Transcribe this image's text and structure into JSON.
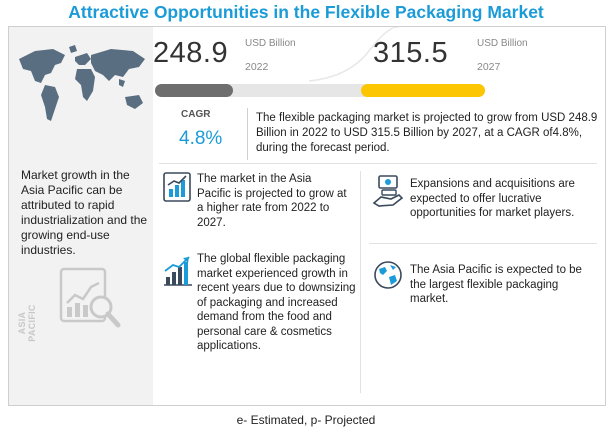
{
  "title": "Attractive Opportunities in the Flexible Packaging Market",
  "left": {
    "text": "Market growth in the Asia Pacific can be attributed to rapid industrialization and the growing end-use industries.",
    "vertical_label": "ASIA PACIFIC"
  },
  "stats": {
    "start_value": "248.9",
    "start_unit": "USD Billion",
    "start_year": "2022",
    "end_value": "315.5",
    "end_unit": "USD Billion",
    "end_year": "2027",
    "cagr_label": "CAGR",
    "cagr_value": "4.8%",
    "summary": "The flexible packaging market is projected to grow from USD 248.9 Billion in 2022 to USD 315.5 Billion by 2027, at a CAGR of4.8%, during the forecast period."
  },
  "highlights": [
    {
      "icon": "growth-chart-icon",
      "text": "The market in the Asia Pacific is projected to grow at a higher rate from 2022 to 2027."
    },
    {
      "icon": "money-hand-icon",
      "text": "Expansions and acquisitions are expected to offer lucrative opportunities for market players."
    },
    {
      "icon": "growth-arrow-icon",
      "text": "The global flexible packaging market experienced growth in recent years due to downsizing of packaging and increased demand from the food and personal care & cosmetics applications."
    },
    {
      "icon": "globe-icon",
      "text": "The Asia Pacific is expected to be the largest flexible packaging market."
    }
  ],
  "colors": {
    "accent": "#1b9bd7",
    "highlight": "#fcc603",
    "bar_start": "#6e6e6e"
  },
  "footer": "e- Estimated, p- Projected"
}
